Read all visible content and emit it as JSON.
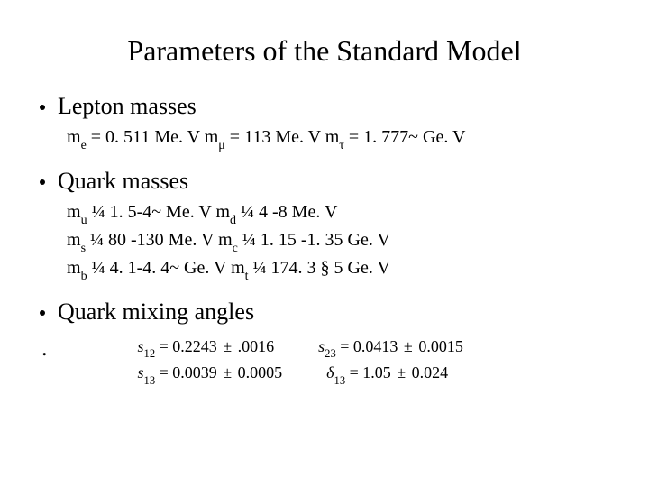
{
  "title": "Parameters of the Standard Model",
  "bullets": {
    "lepton": "Lepton masses",
    "quark": "Quark masses",
    "mixing": "Quark mixing angles"
  },
  "lepton_line": {
    "m": "m",
    "e": "e",
    "mu": "μ",
    "tau": "τ",
    "v_e": " = 0. 511 Me. V  ",
    "v_mu": " = 113 Me. V  ",
    "v_tau": " = 1. 777~  Ge. V"
  },
  "quark_lines": {
    "m": "m",
    "u": "u",
    "d": "d",
    "s": "s",
    "c": "c",
    "b": "b",
    "t": "t",
    "q14": " ¼ ",
    "v_u": "1. 5-4~ Me. V   ",
    "v_d": "4 -8 Me. V",
    "v_s": "80 -130 Me. V   ",
    "v_c": "1. 15 -1. 35 Ge. V",
    "v_b": "4. 1-4. 4~ Ge. V  ",
    "v_t": "174. 3 § 5   Ge. V"
  },
  "mixing": {
    "s": "s",
    "delta": "δ",
    "i12": "12",
    "i23": "23",
    "i13": "13",
    "eq": " = ",
    "pm": "±",
    "v12": "0.2243",
    "e12": ".0016",
    "v23": "0.0413",
    "e23": "0.0015",
    "v13": "0.0039",
    "e13": "0.0005",
    "vd13": "1.05",
    "ed13": "0.024"
  },
  "trailing_dot": "."
}
